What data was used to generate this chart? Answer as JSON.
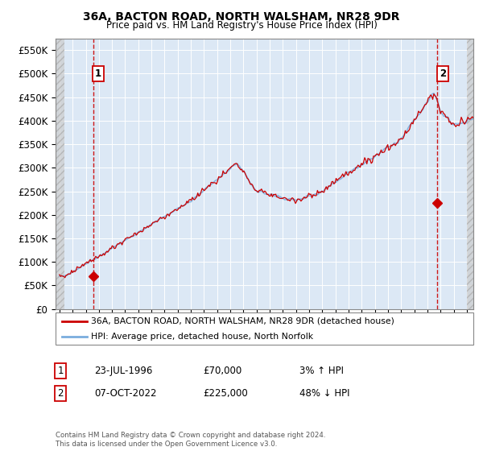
{
  "title1": "36A, BACTON ROAD, NORTH WALSHAM, NR28 9DR",
  "title2": "Price paid vs. HM Land Registry's House Price Index (HPI)",
  "legend1": "36A, BACTON ROAD, NORTH WALSHAM, NR28 9DR (detached house)",
  "legend2": "HPI: Average price, detached house, North Norfolk",
  "annotation1_label": "1",
  "annotation1_date": "23-JUL-1996",
  "annotation1_price": "£70,000",
  "annotation1_hpi": "3% ↑ HPI",
  "annotation2_label": "2",
  "annotation2_date": "07-OCT-2022",
  "annotation2_price": "£225,000",
  "annotation2_hpi": "48% ↓ HPI",
  "footer": "Contains HM Land Registry data © Crown copyright and database right 2024.\nThis data is licensed under the Open Government Licence v3.0.",
  "red_color": "#cc0000",
  "blue_color": "#7aadde",
  "background_plot": "#dce8f5",
  "ylim": [
    0,
    575000
  ],
  "yticks": [
    0,
    50000,
    100000,
    150000,
    200000,
    250000,
    300000,
    350000,
    400000,
    450000,
    500000,
    550000
  ],
  "xlabel_start_year": 1994,
  "xlabel_end_year": 2025,
  "sale1_t": 1996.554,
  "sale1_price": 70000,
  "sale2_t": 2022.764,
  "sale2_price": 225000
}
